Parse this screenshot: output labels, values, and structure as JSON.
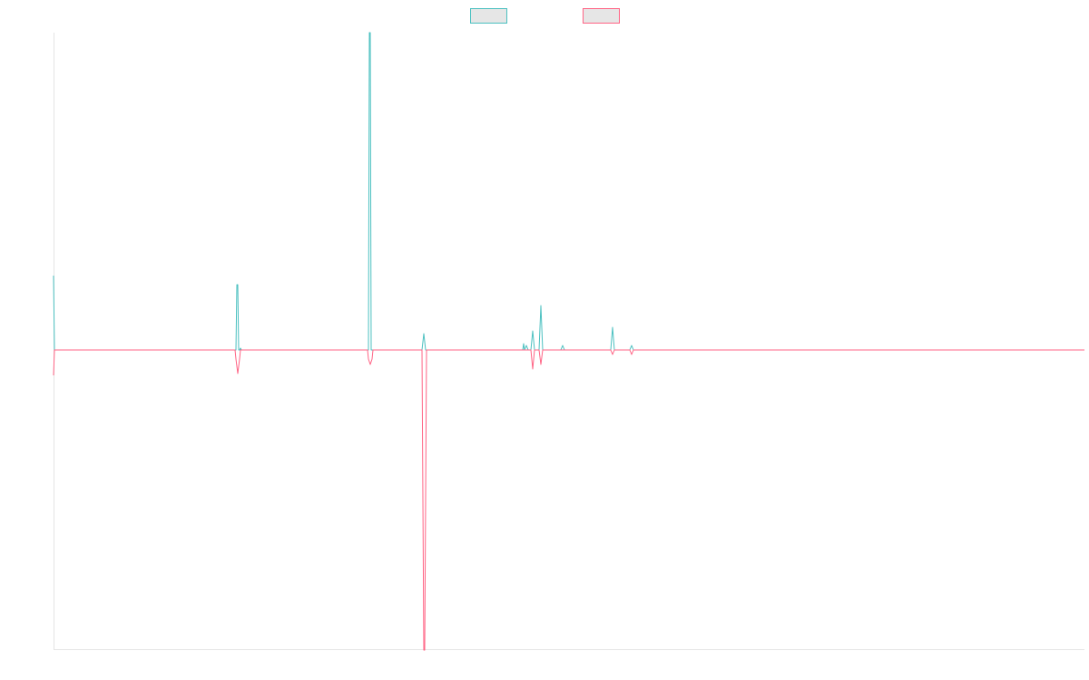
{
  "chart_data": {
    "type": "line",
    "title": "",
    "xlabel": "",
    "ylabel": "",
    "grid": false,
    "legend": "top-center",
    "x_range": [
      0,
      1136
    ],
    "ylim": [
      -330,
      350
    ],
    "series": [
      {
        "color": "#4bc0c0",
        "swatch_fill": "#e6e6e6",
        "points": [
          [
            0,
            82
          ],
          [
            1,
            0
          ],
          [
            200,
            0
          ],
          [
            201,
            0
          ],
          [
            202,
            72
          ],
          [
            203,
            72
          ],
          [
            204,
            0
          ],
          [
            205,
            0
          ],
          [
            206,
            2
          ],
          [
            207,
            0
          ],
          [
            346,
            0
          ],
          [
            347,
            0
          ],
          [
            348,
            350
          ],
          [
            349,
            350
          ],
          [
            350,
            0
          ],
          [
            351,
            0
          ],
          [
            406,
            0
          ],
          [
            408,
            18
          ],
          [
            410,
            0
          ],
          [
            516,
            0
          ],
          [
            517,
            0
          ],
          [
            518,
            7
          ],
          [
            519,
            0
          ],
          [
            521,
            5
          ],
          [
            523,
            0
          ],
          [
            526,
            0
          ],
          [
            528,
            21
          ],
          [
            530,
            0
          ],
          [
            535,
            0
          ],
          [
            537,
            49
          ],
          [
            539,
            0
          ],
          [
            559,
            0
          ],
          [
            561,
            5
          ],
          [
            563,
            0
          ],
          [
            614,
            0
          ],
          [
            616,
            25
          ],
          [
            618,
            0
          ],
          [
            635,
            0
          ],
          [
            637,
            5
          ],
          [
            639,
            0
          ],
          [
            1136,
            0
          ]
        ]
      },
      {
        "color": "#ff6384",
        "swatch_fill": "#e6e6e6",
        "points": [
          [
            0,
            -28
          ],
          [
            1,
            0
          ],
          [
            200,
            0
          ],
          [
            201,
            -10
          ],
          [
            203,
            -26
          ],
          [
            205,
            -10
          ],
          [
            206,
            0
          ],
          [
            346,
            0
          ],
          [
            347,
            -10
          ],
          [
            349,
            -16
          ],
          [
            351,
            -10
          ],
          [
            352,
            0
          ],
          [
            406,
            0
          ],
          [
            408,
            -331
          ],
          [
            409,
            -331
          ],
          [
            411,
            0
          ],
          [
            526,
            0
          ],
          [
            528,
            -21
          ],
          [
            530,
            0
          ],
          [
            535,
            0
          ],
          [
            537,
            -16
          ],
          [
            539,
            0
          ],
          [
            614,
            0
          ],
          [
            616,
            -5
          ],
          [
            618,
            0
          ],
          [
            635,
            0
          ],
          [
            637,
            -5
          ],
          [
            639,
            0
          ],
          [
            1136,
            0
          ]
        ]
      }
    ]
  }
}
